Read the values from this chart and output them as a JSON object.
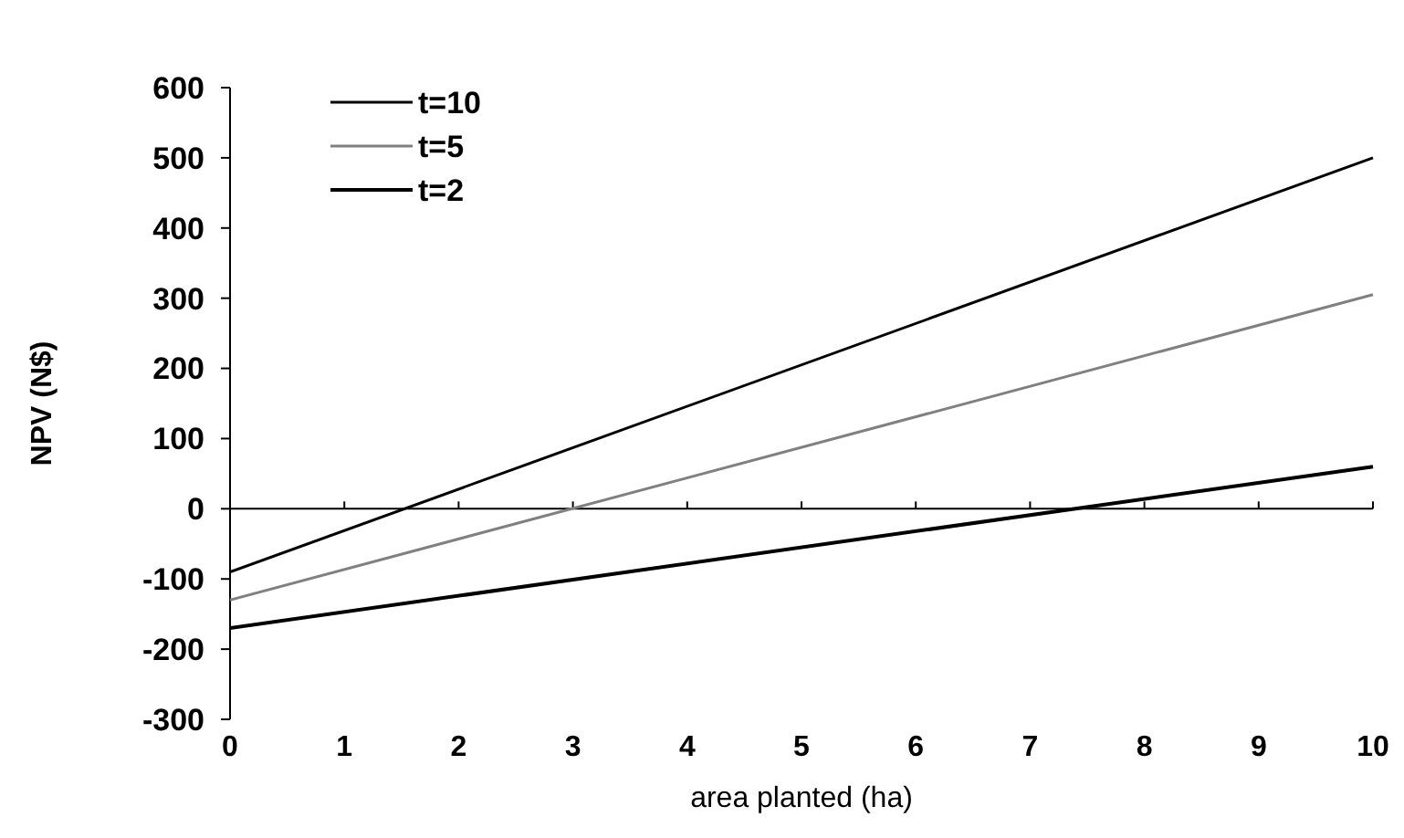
{
  "chart_data": {
    "type": "line",
    "xlabel": "area planted (ha)",
    "ylabel": "NPV (N$)",
    "xlim": [
      0,
      10
    ],
    "xticks": [
      0,
      1,
      2,
      3,
      4,
      5,
      6,
      7,
      8,
      9,
      10
    ],
    "ylim": [
      -300,
      600
    ],
    "yticks": [
      -300,
      -200,
      -100,
      0,
      100,
      200,
      300,
      400,
      500,
      600
    ],
    "x": [
      0,
      10
    ],
    "series": [
      {
        "name": "t=10",
        "color": "#000000",
        "values": [
          -90,
          500
        ]
      },
      {
        "name": "t=5",
        "color": "#808080",
        "values": [
          -130,
          305
        ]
      },
      {
        "name": "t=2",
        "color": "#000000",
        "values": [
          -170,
          60
        ]
      }
    ],
    "legend": "top left",
    "marker": "none",
    "line_style": "solid"
  }
}
